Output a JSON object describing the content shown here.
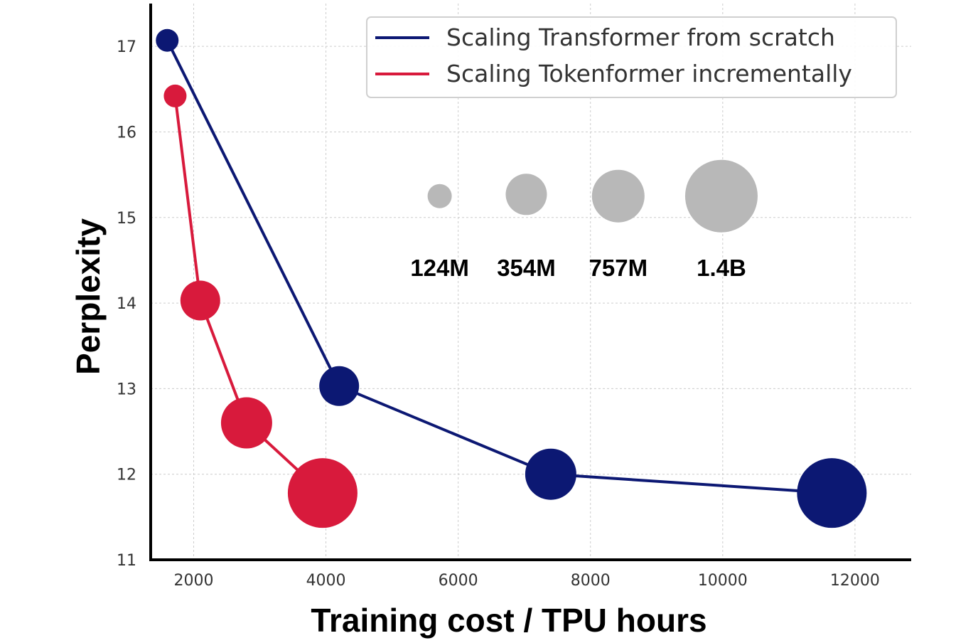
{
  "chart_data": {
    "type": "scatter",
    "xlabel": "Training cost / TPU hours",
    "ylabel": "Perplexity",
    "xlim": [
      1350,
      12850
    ],
    "ylim": [
      11,
      17.5
    ],
    "x_ticks": [
      2000,
      4000,
      6000,
      8000,
      10000,
      12000
    ],
    "y_ticks": [
      11,
      12,
      13,
      14,
      15,
      16,
      17
    ],
    "grid": true,
    "legend_position": "top-right",
    "series": [
      {
        "name": "Scaling Transformer from scratch",
        "color": "#0c1873",
        "points": [
          {
            "x": 1600,
            "y": 17.07,
            "size": "124M"
          },
          {
            "x": 4200,
            "y": 13.03,
            "size": "354M"
          },
          {
            "x": 7400,
            "y": 12.0,
            "size": "757M"
          },
          {
            "x": 11650,
            "y": 11.78,
            "size": "1.4B"
          }
        ]
      },
      {
        "name": "Scaling Tokenformer incrementally",
        "color": "#d81a3c",
        "points": [
          {
            "x": 1720,
            "y": 16.42,
            "size": "124M"
          },
          {
            "x": 2100,
            "y": 14.03,
            "size": "354M"
          },
          {
            "x": 2800,
            "y": 12.6,
            "size": "757M"
          },
          {
            "x": 3950,
            "y": 11.78,
            "size": "1.4B"
          }
        ]
      }
    ],
    "size_legend": {
      "color": "#b8b8b8",
      "entries": [
        {
          "label": "124M",
          "x": 5720,
          "y": 15.25
        },
        {
          "label": "354M",
          "x": 7030,
          "y": 15.27
        },
        {
          "label": "757M",
          "x": 8420,
          "y": 15.25
        },
        {
          "label": "1.4B",
          "x": 9980,
          "y": 15.25
        }
      ]
    }
  }
}
